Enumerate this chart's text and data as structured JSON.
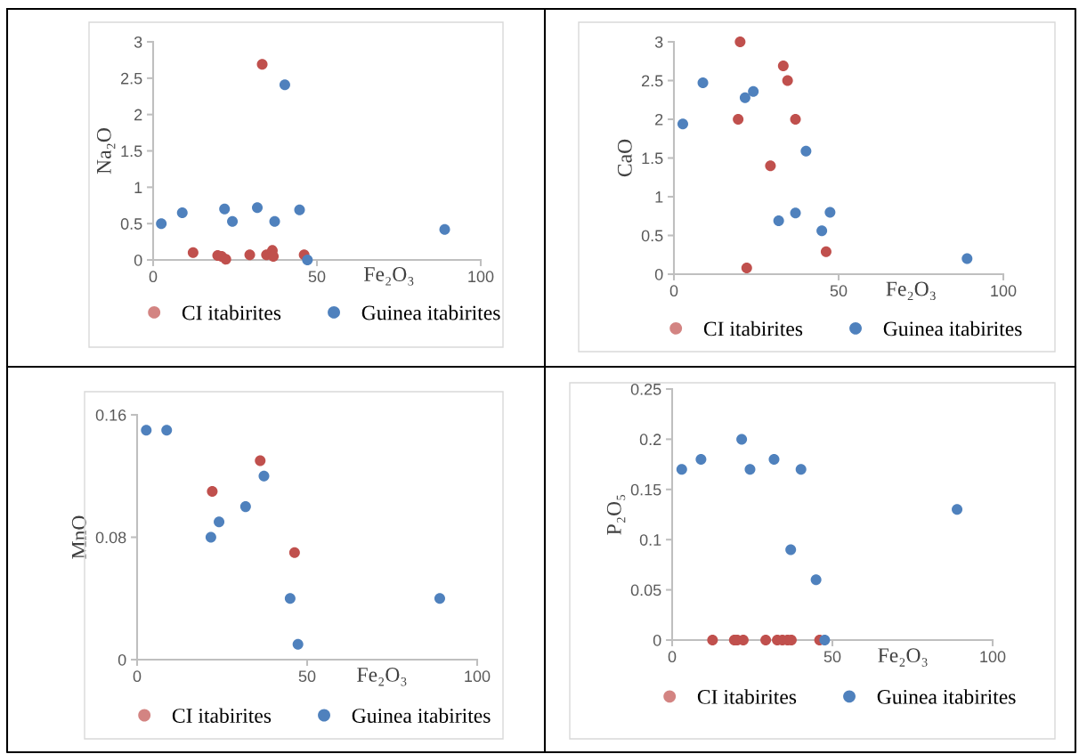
{
  "chart_data": [
    {
      "type": "scatter",
      "xlabel": "Fe₂O₃",
      "ylabel": "Na₂O",
      "xlim": [
        0,
        100
      ],
      "xticks": [
        0,
        50,
        100
      ],
      "ylim": [
        0,
        3
      ],
      "yticks": [
        0,
        0.5,
        1,
        1.5,
        2,
        2.5,
        3
      ],
      "legend": "bottom",
      "marker": "circle",
      "series": [
        {
          "name": "CI itabirites",
          "color": "#c0504d",
          "x": [
            12.2,
            19.7,
            20.9,
            22.2,
            29.5,
            33.3,
            34.6,
            36.4,
            36.7,
            46.1
          ],
          "values": [
            0.1,
            0.06,
            0.05,
            0.01,
            0.07,
            2.69,
            0.07,
            0.13,
            0.05,
            0.07
          ]
        },
        {
          "name": "Guinea itabirites",
          "color": "#4f81bd",
          "x": [
            2.5,
            8.9,
            21.8,
            24.2,
            31.8,
            37.1,
            40.2,
            44.7,
            47.1,
            89.0
          ],
          "values": [
            0.5,
            0.65,
            0.7,
            0.53,
            0.72,
            0.53,
            2.41,
            0.69,
            0.0,
            0.42
          ]
        }
      ]
    },
    {
      "type": "scatter",
      "xlabel": "Fe₂O₃",
      "ylabel": "CaO",
      "xlim": [
        0,
        100
      ],
      "xticks": [
        0,
        50,
        100
      ],
      "ylim": [
        0,
        3
      ],
      "yticks": [
        0,
        0.5,
        1,
        1.5,
        2,
        2.5,
        3
      ],
      "legend": "bottom",
      "marker": "circle",
      "series": [
        {
          "name": "CI itabirites",
          "color": "#c0504d",
          "x": [
            20.1,
            19.5,
            22.1,
            29.3,
            33.2,
            34.5,
            36.9,
            46.2
          ],
          "values": [
            3.0,
            2.0,
            0.08,
            1.4,
            2.69,
            2.5,
            2.0,
            0.29
          ]
        },
        {
          "name": "Guinea itabirites",
          "color": "#4f81bd",
          "x": [
            2.7,
            8.8,
            21.6,
            24.1,
            31.8,
            36.9,
            40.1,
            44.9,
            47.4,
            89.0
          ],
          "values": [
            1.94,
            2.47,
            2.28,
            2.36,
            0.69,
            0.79,
            1.59,
            0.56,
            0.8,
            0.2
          ]
        }
      ]
    },
    {
      "type": "scatter",
      "xlabel": "Fe₂O₃",
      "ylabel": "MnO",
      "xlim": [
        0,
        100
      ],
      "xticks": [
        0,
        50,
        100
      ],
      "ylim": [
        0,
        0.16
      ],
      "yticks": [
        0,
        0.08,
        0.16
      ],
      "legend": "bottom",
      "marker": "circle",
      "series": [
        {
          "name": "CI itabirites",
          "color": "#c0504d",
          "x": [
            22.1,
            36.2,
            46.3
          ],
          "values": [
            0.11,
            0.13,
            0.07
          ]
        },
        {
          "name": "Guinea itabirites",
          "color": "#4f81bd",
          "x": [
            2.7,
            8.7,
            21.7,
            24.1,
            31.9,
            37.3,
            45.0,
            47.3,
            89.0
          ],
          "values": [
            0.15,
            0.15,
            0.08,
            0.09,
            0.1,
            0.12,
            0.04,
            0.01,
            0.04
          ]
        }
      ]
    },
    {
      "type": "scatter",
      "xlabel": "Fe₂O₃",
      "ylabel": "P₂O₅",
      "xlim": [
        0,
        100
      ],
      "xticks": [
        0,
        50,
        100
      ],
      "ylim": [
        0,
        0.25
      ],
      "yticks": [
        0,
        0.05,
        0.1,
        0.15,
        0.2,
        0.25
      ],
      "legend": "bottom",
      "marker": "circle",
      "series": [
        {
          "name": "CI itabirites",
          "color": "#c0504d",
          "x": [
            12.6,
            19.4,
            20.3,
            22.2,
            29.2,
            32.8,
            34.4,
            36.0,
            37.2,
            46.0
          ],
          "values": [
            0,
            0,
            0,
            0,
            0,
            0,
            0,
            0,
            0,
            0
          ]
        },
        {
          "name": "Guinea itabirites",
          "color": "#4f81bd",
          "x": [
            3.0,
            9.0,
            21.7,
            24.3,
            31.8,
            40.2,
            37.0,
            44.9,
            47.6,
            88.9
          ],
          "values": [
            0.17,
            0.18,
            0.2,
            0.17,
            0.18,
            0.17,
            0.09,
            0.06,
            0.0,
            0.13
          ]
        }
      ]
    }
  ]
}
